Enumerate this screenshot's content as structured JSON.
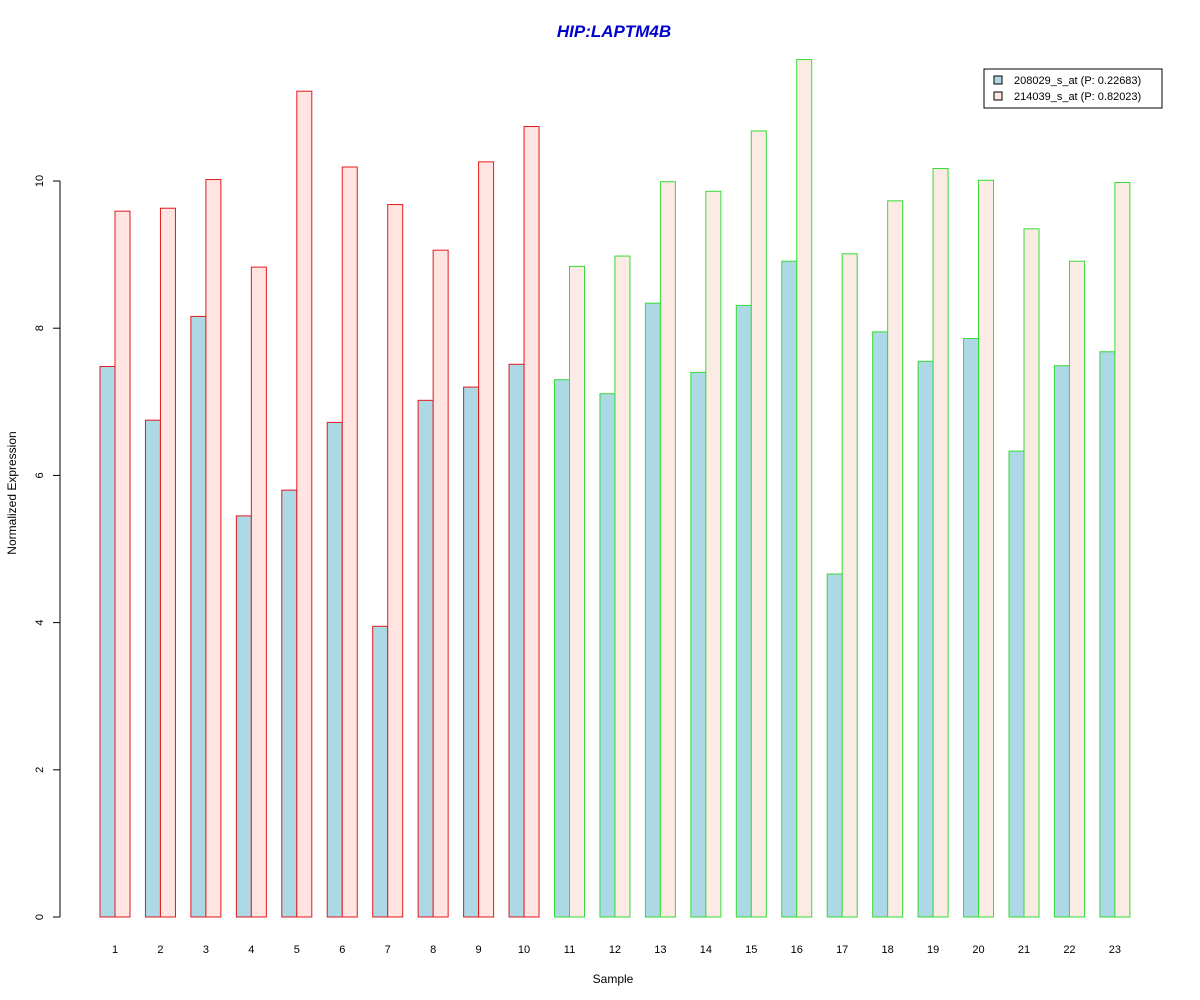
{
  "chart_data": {
    "type": "bar",
    "title": "HIP:LAPTM4B",
    "xlabel": "Sample",
    "ylabel": "Normalized Expression",
    "ylim": [
      0,
      11.7
    ],
    "yticks": [
      0,
      2,
      4,
      6,
      8,
      10
    ],
    "categories": [
      "1",
      "2",
      "3",
      "4",
      "5",
      "6",
      "7",
      "8",
      "9",
      "10",
      "11",
      "12",
      "13",
      "14",
      "15",
      "16",
      "17",
      "18",
      "19",
      "20",
      "21",
      "22",
      "23"
    ],
    "groups": [
      {
        "samples": [
          "1",
          "2",
          "3",
          "4",
          "5",
          "6",
          "7",
          "8",
          "9",
          "10"
        ],
        "border_color": "#e31a1c"
      },
      {
        "samples": [
          "11",
          "12",
          "13",
          "14",
          "15",
          "16",
          "17",
          "18",
          "19",
          "20",
          "21",
          "22",
          "23"
        ],
        "border_color": "#33dd33"
      }
    ],
    "series": [
      {
        "name": "208029_s_at (P: 0.22683)",
        "fill": "#add8e6",
        "values": [
          7.48,
          6.75,
          8.16,
          5.45,
          5.8,
          6.72,
          3.95,
          7.02,
          7.2,
          7.51,
          7.3,
          7.11,
          8.34,
          7.4,
          8.31,
          8.91,
          4.66,
          7.95,
          7.55,
          7.86,
          6.33,
          7.49,
          7.68
        ]
      },
      {
        "name": "214039_s_at (P: 0.82023)",
        "fill_group1": "#ffe4e1",
        "fill_group2": "#fcebe4",
        "values": [
          9.59,
          9.63,
          10.02,
          8.83,
          11.22,
          10.19,
          9.68,
          9.06,
          10.26,
          10.74,
          8.84,
          8.98,
          9.99,
          9.86,
          10.68,
          11.65,
          9.01,
          9.73,
          10.17,
          10.01,
          9.35,
          8.91,
          9.98
        ]
      }
    ],
    "legend_position": "top-right",
    "colors": {
      "title": "#0000cd",
      "axis": "#000000"
    }
  }
}
